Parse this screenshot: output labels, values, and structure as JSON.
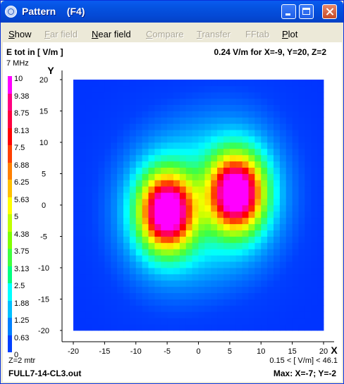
{
  "window": {
    "title": "Pattern    (F4)"
  },
  "menu": [
    {
      "label": "Show",
      "ul": "S",
      "rest": "how",
      "enabled": true
    },
    {
      "label": "Far field",
      "ul": "F",
      "rest": "ar field",
      "enabled": false
    },
    {
      "label": "Near field",
      "ul": "N",
      "rest": "ear field",
      "enabled": true
    },
    {
      "label": "Compare",
      "ul": "C",
      "rest": "ompare",
      "enabled": false
    },
    {
      "label": "Transfer",
      "ul": "T",
      "rest": "ransfer",
      "enabled": false
    },
    {
      "label": "FFtab",
      "ul": "",
      "rest": "FFtab",
      "enabled": false
    },
    {
      "label": "Plot",
      "ul": "P",
      "rest": "lot",
      "enabled": true
    }
  ],
  "header": {
    "quantity": "E tot in [ V/m ]",
    "readout": "0.24  V/m for X=-9, Y=20, Z=2",
    "frequency": "7 MHz"
  },
  "legend": {
    "labels": [
      "10",
      "9.38",
      "8.75",
      "8.13",
      "7.5",
      "6.88",
      "6.25",
      "5.63",
      "5",
      "4.38",
      "3.75",
      "3.13",
      "2.5",
      "1.88",
      "1.25",
      "0.63",
      "0"
    ],
    "colors": [
      "#ff00ff",
      "#ff0080",
      "#ff0040",
      "#ff0000",
      "#ff4000",
      "#ff8000",
      "#ffc000",
      "#ffff00",
      "#c0ff00",
      "#80ff00",
      "#40ff40",
      "#00ff80",
      "#00ffff",
      "#00c0ff",
      "#0080ff",
      "#0040ff",
      "#0000ff"
    ]
  },
  "chart_data": {
    "type": "heatmap",
    "xlabel": "X",
    "ylabel": "Y",
    "x_ticks": [
      -20,
      -15,
      -10,
      -5,
      0,
      5,
      10,
      15,
      20
    ],
    "y_ticks": [
      20,
      15,
      10,
      5,
      0,
      -5,
      -10,
      -15,
      -20
    ],
    "xlim": [
      -20,
      20
    ],
    "ylim": [
      -20,
      20
    ],
    "grid_step": 1,
    "sources": [
      {
        "x": -5,
        "y": -1,
        "peak": 10
      },
      {
        "x": 6,
        "y": 2,
        "peak": 10
      }
    ]
  },
  "footer": {
    "z_label": "Z=2 mtr",
    "range": "0.15 < [ V/m] < 46.1",
    "file": "FULL7-14-CL3.out",
    "max": "Max: X=-7; Y=-2"
  }
}
